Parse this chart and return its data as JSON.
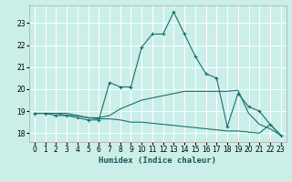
{
  "xlabel": "Humidex (Indice chaleur)",
  "bg_color": "#cceee8",
  "grid_color": "#ffffff",
  "line_color": "#1a7070",
  "x_ticks": [
    0,
    1,
    2,
    3,
    4,
    5,
    6,
    7,
    8,
    9,
    10,
    11,
    12,
    13,
    14,
    15,
    16,
    17,
    18,
    19,
    20,
    21,
    22,
    23
  ],
  "y_ticks": [
    18,
    19,
    20,
    21,
    22,
    23
  ],
  "ylim": [
    17.6,
    23.8
  ],
  "xlim": [
    -0.5,
    23.5
  ],
  "series": [
    [
      18.9,
      18.9,
      18.8,
      18.8,
      18.7,
      18.6,
      18.6,
      20.3,
      20.1,
      20.1,
      21.9,
      22.5,
      22.5,
      23.5,
      22.5,
      21.5,
      20.7,
      20.5,
      18.3,
      19.8,
      19.2,
      19.0,
      18.4,
      17.9
    ],
    [
      18.9,
      18.9,
      18.9,
      18.9,
      18.8,
      18.7,
      18.7,
      18.8,
      19.1,
      19.3,
      19.5,
      19.6,
      19.7,
      19.8,
      19.9,
      19.9,
      19.9,
      19.9,
      19.9,
      19.95,
      18.9,
      18.4,
      18.2,
      17.9
    ],
    [
      18.9,
      18.9,
      18.9,
      18.8,
      18.8,
      18.7,
      18.65,
      18.65,
      18.6,
      18.5,
      18.5,
      18.45,
      18.4,
      18.35,
      18.3,
      18.25,
      18.2,
      18.15,
      18.1,
      18.1,
      18.05,
      18.0,
      18.4,
      17.9
    ]
  ]
}
